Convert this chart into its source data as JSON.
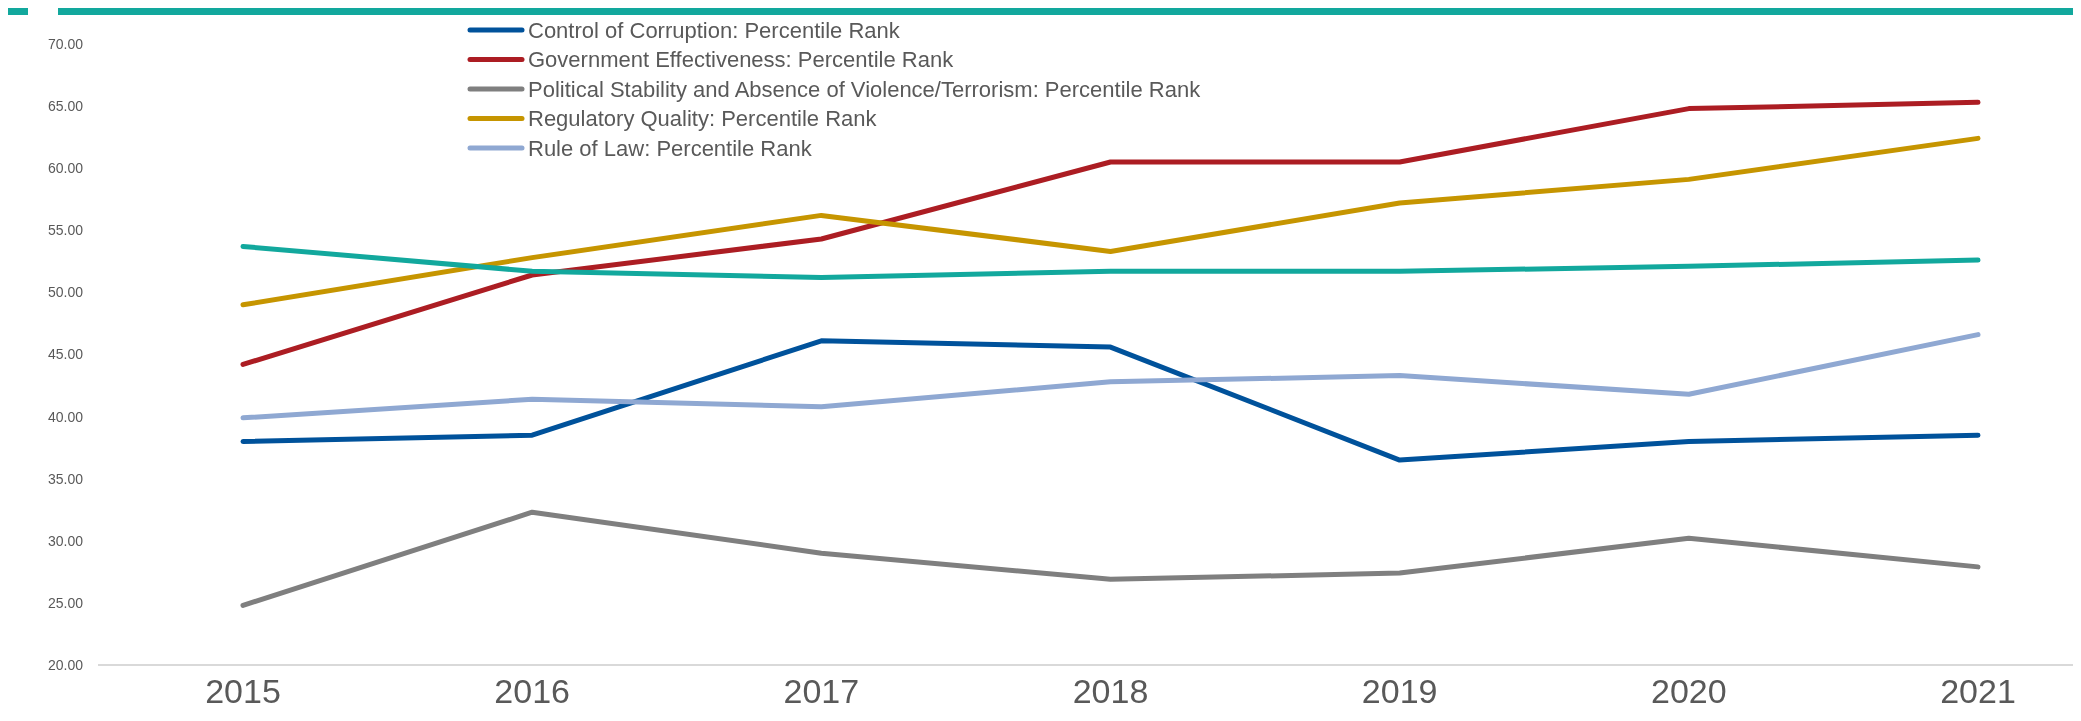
{
  "chart_data": {
    "type": "line",
    "categories": [
      "2015",
      "2016",
      "2017",
      "2018",
      "2019",
      "2020",
      "2021"
    ],
    "series": [
      {
        "name": "Control of Corruption: Percentile Rank",
        "color": "#00529b",
        "values": [
          38.0,
          38.5,
          46.1,
          45.6,
          36.5,
          38.0,
          38.5
        ]
      },
      {
        "name": "Government Effectiveness: Percentile Rank",
        "color": "#ac1d23",
        "values": [
          44.2,
          51.4,
          54.3,
          60.5,
          60.5,
          64.8,
          65.3
        ]
      },
      {
        "name": "Political Stability and Absence of Violence/Terrorism: Percentile Rank",
        "color": "#7f7f7f",
        "values": [
          24.8,
          32.3,
          29.0,
          26.9,
          27.4,
          30.2,
          27.9
        ]
      },
      {
        "name": "Regulatory Quality: Percentile Rank",
        "color": "#c69500",
        "values": [
          49.0,
          52.8,
          56.2,
          53.3,
          57.2,
          59.1,
          62.4
        ]
      },
      {
        "name": "Rule of Law: Percentile Rank",
        "color": "#8fa8d2",
        "values": [
          39.9,
          41.4,
          40.8,
          42.8,
          43.3,
          41.8,
          46.6
        ]
      },
      {
        "color": "#12a89d",
        "values": [
          53.7,
          51.7,
          51.2,
          51.7,
          51.7,
          52.1,
          52.6
        ]
      }
    ],
    "ylim": [
      20,
      70
    ],
    "yticks": [
      {
        "value": 20,
        "label": "20.00"
      },
      {
        "value": 25,
        "label": "25.00"
      },
      {
        "value": 30,
        "label": "30.00"
      },
      {
        "value": 35,
        "label": "35.00"
      },
      {
        "value": 40,
        "label": "40.00"
      },
      {
        "value": 45,
        "label": "45.00"
      },
      {
        "value": 50,
        "label": "50.00"
      },
      {
        "value": 55,
        "label": "55.00"
      },
      {
        "value": 60,
        "label": "60.00"
      },
      {
        "value": 65,
        "label": "65.00"
      },
      {
        "value": 70,
        "label": "70.00"
      }
    ],
    "legend": "top",
    "grid": false,
    "line_style": "solid",
    "marker": "none"
  }
}
